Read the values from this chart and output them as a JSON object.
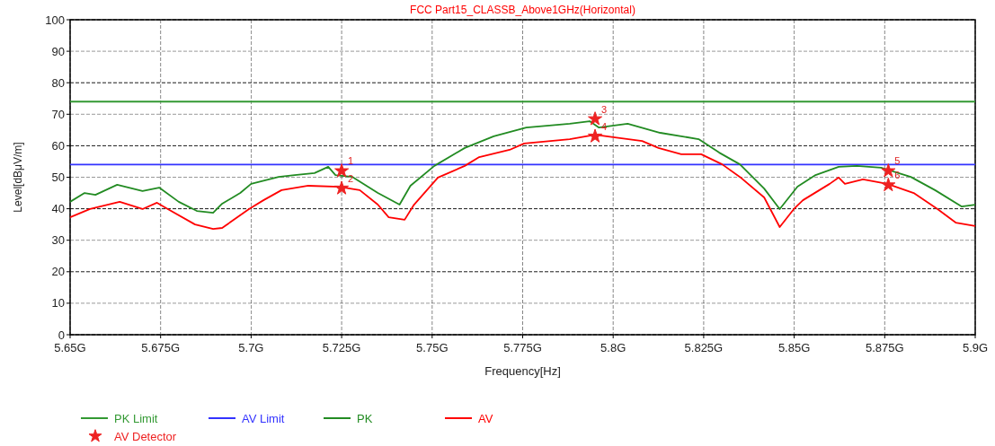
{
  "chart_data": {
    "type": "line",
    "title": "FCC Part15_CLASSB_Above1GHz(Horizontal)",
    "xlabel": "Frequency[Hz]",
    "ylabel": "Level[dBμV/m]",
    "xlim": [
      5.65,
      5.9
    ],
    "xticks": [
      {
        "value": 5.65,
        "label": "5.65G"
      },
      {
        "value": 5.675,
        "label": "5.675G"
      },
      {
        "value": 5.7,
        "label": "5.7G"
      },
      {
        "value": 5.725,
        "label": "5.725G"
      },
      {
        "value": 5.75,
        "label": "5.75G"
      },
      {
        "value": 5.775,
        "label": "5.775G"
      },
      {
        "value": 5.8,
        "label": "5.8G"
      },
      {
        "value": 5.825,
        "label": "5.825G"
      },
      {
        "value": 5.85,
        "label": "5.85G"
      },
      {
        "value": 5.875,
        "label": "5.875G"
      },
      {
        "value": 5.9,
        "label": "5.9G"
      }
    ],
    "ylim": [
      0,
      100
    ],
    "yticks": [
      0,
      10,
      20,
      30,
      40,
      50,
      60,
      70,
      80,
      90,
      100
    ],
    "grid": true,
    "legend": "bottom",
    "line_style": "solid",
    "series": [
      {
        "name": "PK Limit",
        "color": "#339933",
        "x": [
          5.65,
          5.9
        ],
        "values": [
          74,
          74
        ]
      },
      {
        "name": "AV Limit",
        "color": "#3333ff",
        "x": [
          5.65,
          5.9
        ],
        "values": [
          54,
          54
        ]
      },
      {
        "name": "PK",
        "color": "#228b22",
        "x": [
          5.65,
          5.654,
          5.657,
          5.663,
          5.67,
          5.6746,
          5.68,
          5.685,
          5.6895,
          5.692,
          5.697,
          5.7,
          5.7076,
          5.712,
          5.7175,
          5.7213,
          5.7233,
          5.728,
          5.735,
          5.741,
          5.744,
          5.7506,
          5.759,
          5.767,
          5.776,
          5.788,
          5.7935,
          5.796,
          5.804,
          5.813,
          5.8236,
          5.8293,
          5.835,
          5.8417,
          5.846,
          5.8509,
          5.8559,
          5.8623,
          5.8673,
          5.874,
          5.8822,
          5.8889,
          5.8963,
          5.9
        ],
        "values": [
          42.2,
          45,
          44.4,
          47.6,
          45.6,
          46.7,
          42.2,
          39.3,
          38.7,
          41.6,
          45,
          47.9,
          50.1,
          50.7,
          51.3,
          53.3,
          50.7,
          50.1,
          45,
          41.3,
          47.3,
          53.6,
          59.3,
          63,
          65.8,
          67,
          67.8,
          65.8,
          67,
          64.1,
          62.1,
          57.8,
          54.1,
          46.4,
          39.9,
          47,
          50.7,
          53.3,
          53.6,
          53,
          50.1,
          45.9,
          40.7,
          41.3
        ]
      },
      {
        "name": "AV",
        "color": "#ff0000",
        "x": [
          5.65,
          5.6555,
          5.6637,
          5.67,
          5.674,
          5.677,
          5.6845,
          5.6895,
          5.692,
          5.6994,
          5.7034,
          5.7084,
          5.7158,
          5.7243,
          5.73,
          5.735,
          5.738,
          5.7424,
          5.745,
          5.7516,
          5.759,
          5.763,
          5.7714,
          5.7754,
          5.788,
          5.795,
          5.8,
          5.808,
          5.8125,
          5.8188,
          5.8243,
          5.8301,
          5.835,
          5.8417,
          5.846,
          5.8499,
          5.8524,
          5.8598,
          5.8623,
          5.864,
          5.869,
          5.8757,
          5.883,
          5.8896,
          5.8946,
          5.9
        ],
        "values": [
          37.3,
          39.9,
          42.2,
          39.9,
          41.9,
          39.9,
          35,
          33.6,
          33.9,
          39.9,
          42.7,
          45.9,
          47.3,
          47,
          45.9,
          41.3,
          37.3,
          36.5,
          41.3,
          49.9,
          53.6,
          56.4,
          58.7,
          60.7,
          62.1,
          63.5,
          62.7,
          61.5,
          59.3,
          57.3,
          57.3,
          54.1,
          50.1,
          43.6,
          34.2,
          39.9,
          42.7,
          47.9,
          49.9,
          47.9,
          49.3,
          47.9,
          45,
          39.9,
          35.6,
          34.5
        ]
      },
      {
        "name": "AV Detector",
        "type": "scatter",
        "marker": "star",
        "color": "#ee2222",
        "x": [
          5.725,
          5.725,
          5.795,
          5.795,
          5.876,
          5.876
        ],
        "values": [
          52,
          46.5,
          68.5,
          63,
          52,
          47.5
        ]
      }
    ],
    "annotations": [
      {
        "text": "1",
        "x": 5.725,
        "y": 52
      },
      {
        "text": "2",
        "x": 5.725,
        "y": 46.5
      },
      {
        "text": "3",
        "x": 5.795,
        "y": 68.5
      },
      {
        "text": "4",
        "x": 5.795,
        "y": 63
      },
      {
        "text": "5",
        "x": 5.876,
        "y": 52
      },
      {
        "text": "6",
        "x": 5.876,
        "y": 47.5
      }
    ]
  }
}
